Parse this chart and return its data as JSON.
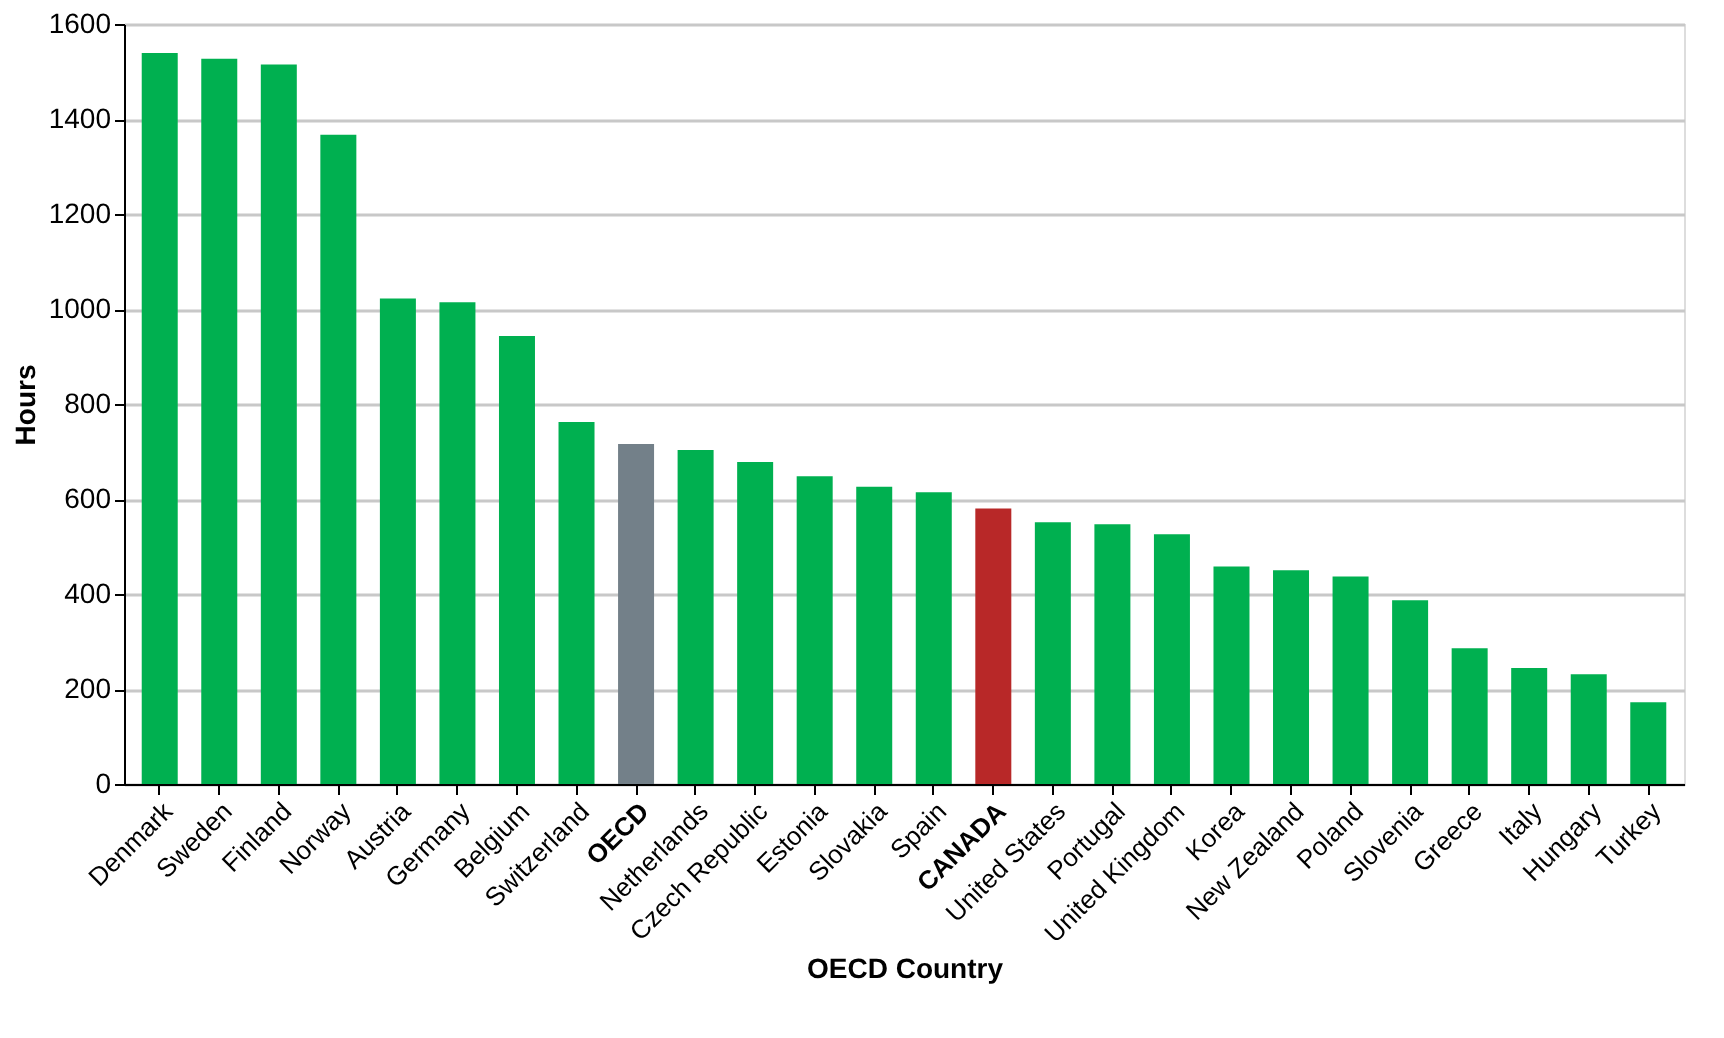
{
  "chart_data": {
    "type": "bar",
    "xlabel": "OECD Country",
    "ylabel": "Hours",
    "categories": [
      "Denmark",
      "Sweden",
      "Finland",
      "Norway",
      "Austria",
      "Germany",
      "Belgium",
      "Switzerland",
      "OECD",
      "Netherlands",
      "Czech Republic",
      "Estonia",
      "Slovakia",
      "Spain",
      "CANADA",
      "United States",
      "Portugal",
      "United Kingdom",
      "Korea",
      "New Zealand",
      "Poland",
      "Slovenia",
      "Greece",
      "Italy",
      "Hungary",
      "Turkey"
    ],
    "values": [
      1539,
      1527,
      1515,
      1367,
      1022,
      1014,
      943,
      762,
      716,
      703,
      678,
      648,
      626,
      614,
      580,
      551,
      547,
      526,
      458,
      450,
      437,
      387,
      286,
      244,
      231,
      172
    ],
    "colors": [
      "#00b050",
      "#00b050",
      "#00b050",
      "#00b050",
      "#00b050",
      "#00b050",
      "#00b050",
      "#00b050",
      "#738089",
      "#00b050",
      "#00b050",
      "#00b050",
      "#00b050",
      "#00b050",
      "#b82828",
      "#00b050",
      "#00b050",
      "#00b050",
      "#00b050",
      "#00b050",
      "#00b050",
      "#00b050",
      "#00b050",
      "#00b050",
      "#00b050",
      "#00b050"
    ],
    "ylim": [
      0,
      1600
    ],
    "yticks": [
      0,
      200,
      400,
      600,
      800,
      1000,
      1200,
      1400,
      1600
    ],
    "grid": "y",
    "legend": false
  }
}
